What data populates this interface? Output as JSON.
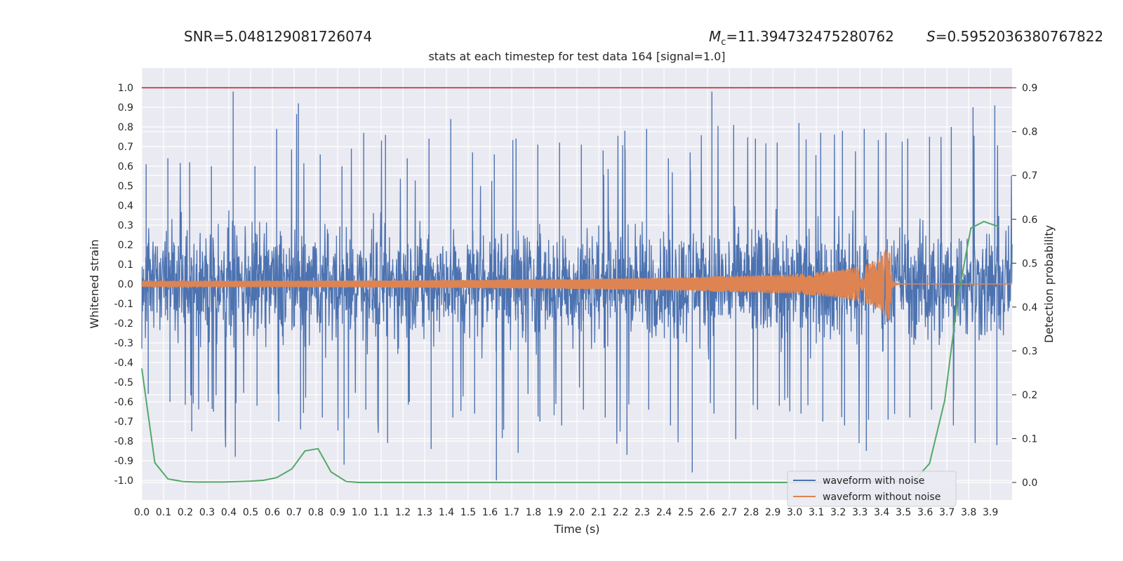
{
  "header": {
    "snr_text": "SNR=5.048129081726074",
    "mc_symbol": "M",
    "mc_subscript": "c",
    "mc_value": "=11.394732475280762",
    "s_symbol": "S",
    "s_value": "=0.5952036380767822"
  },
  "chart_data": {
    "type": "line",
    "title": "stats at each timestep for test data 164 [signal=1.0]",
    "xlabel": "Time (s)",
    "ylabel": "Whitened strain",
    "y2label": "Detection probability",
    "xlim": [
      0.0,
      3.9995
    ],
    "ylim": [
      -1.1,
      1.1
    ],
    "y2lim": [
      -0.04,
      0.945
    ],
    "x_ticks": [
      0.0,
      0.1,
      0.2,
      0.3,
      0.4,
      0.5,
      0.6,
      0.7,
      0.8,
      0.9,
      1.0,
      1.1,
      1.2,
      1.3,
      1.4,
      1.5,
      1.6,
      1.7,
      1.8,
      1.9,
      2.0,
      2.1,
      2.2,
      2.3,
      2.4,
      2.5,
      2.6,
      2.7,
      2.8,
      2.9,
      3.0,
      3.1,
      3.2,
      3.3,
      3.4,
      3.5,
      3.6,
      3.7,
      3.8,
      3.9
    ],
    "y_ticks": [
      1.0,
      0.9,
      0.8,
      0.7,
      0.6,
      0.5,
      0.4,
      0.3,
      0.2,
      0.1,
      0.0,
      -0.1,
      -0.2,
      -0.3,
      -0.4,
      -0.5,
      -0.6,
      -0.7,
      -0.8,
      -0.9,
      -1.0
    ],
    "y2_ticks": [
      0.9,
      0.8,
      0.7,
      0.6,
      0.5,
      0.4,
      0.3,
      0.2,
      0.1,
      0.0
    ],
    "grid": true,
    "legend_position": "bottom-right",
    "series": [
      {
        "name": "waveform with noise",
        "color": "#4c72b0",
        "style": "dense noisy strain, roughly ±0.45 core with spikes to ±1.0",
        "envelope": {
          "x": [
            0.0,
            0.1,
            0.2,
            0.3,
            0.4,
            0.5,
            0.6,
            0.7,
            0.8,
            0.9,
            1.0,
            1.1,
            1.2,
            1.3,
            1.4,
            1.5,
            1.6,
            1.7,
            1.8,
            1.9,
            2.0,
            2.1,
            2.2,
            2.3,
            2.4,
            2.5,
            2.6,
            2.7,
            2.8,
            2.9,
            3.0,
            3.1,
            3.2,
            3.3,
            3.4,
            3.5,
            3.6,
            3.7,
            3.8,
            3.9,
            4.0
          ],
          "max": [
            0.61,
            0.64,
            0.62,
            0.6,
            0.98,
            0.6,
            0.79,
            0.92,
            0.66,
            0.6,
            0.77,
            0.76,
            0.64,
            0.74,
            0.84,
            0.67,
            0.66,
            0.74,
            0.71,
            0.72,
            0.71,
            0.68,
            0.78,
            0.79,
            0.64,
            0.67,
            0.98,
            0.81,
            0.74,
            0.72,
            0.82,
            0.77,
            0.78,
            0.79,
            0.77,
            0.74,
            0.75,
            0.8,
            0.9,
            0.91,
            0.6
          ],
          "min": [
            -0.56,
            -0.6,
            -0.75,
            -0.65,
            -0.88,
            -0.62,
            -0.7,
            -0.74,
            -0.68,
            -0.92,
            -0.64,
            -0.81,
            -0.6,
            -0.84,
            -0.68,
            -0.66,
            -1.0,
            -0.86,
            -0.7,
            -0.72,
            -0.64,
            -0.68,
            -0.87,
            -0.64,
            -0.72,
            -0.96,
            -0.66,
            -0.79,
            -0.64,
            -0.62,
            -0.66,
            -0.7,
            -0.72,
            -0.85,
            -0.69,
            -0.68,
            -0.64,
            -0.72,
            -0.81,
            -0.82,
            -0.62
          ]
        }
      },
      {
        "name": "waveform without noise",
        "color": "#dd8452",
        "style": "chirp oscillation growing in amplitude and frequency, merger near 3.43 s",
        "points": {
          "x": [
            0.0,
            0.5,
            1.0,
            1.5,
            2.0,
            2.5,
            3.0,
            3.2,
            3.3,
            3.38,
            3.42,
            3.435,
            3.45,
            3.5,
            4.0
          ],
          "amplitude": [
            0.015,
            0.015,
            0.017,
            0.02,
            0.025,
            0.035,
            0.05,
            0.07,
            0.09,
            0.12,
            0.17,
            0.2,
            0.03,
            0.005,
            0.003
          ]
        }
      },
      {
        "name": "",
        "axis": "right",
        "color": "#55a868",
        "x": [
          0.0,
          0.06,
          0.12,
          0.19,
          0.25,
          0.31,
          0.37,
          0.44,
          0.5,
          0.56,
          0.62,
          0.69,
          0.75,
          0.81,
          0.87,
          0.94,
          1.0,
          1.5,
          2.0,
          2.5,
          3.0,
          3.5,
          3.56,
          3.62,
          3.69,
          3.75,
          3.81,
          3.87,
          3.94
        ],
        "y": [
          0.26,
          0.045,
          0.008,
          0.002,
          0.001,
          0.001,
          0.001,
          0.002,
          0.003,
          0.005,
          0.011,
          0.031,
          0.072,
          0.077,
          0.024,
          0.002,
          0.0,
          0.0,
          0.0,
          0.0,
          0.0,
          0.002,
          0.01,
          0.043,
          0.187,
          0.42,
          0.58,
          0.595,
          0.583
        ]
      },
      {
        "name": "",
        "axis": "right",
        "color": "#c44e52",
        "style": "horizontal threshold line",
        "x": [
          0.0,
          3.9995
        ],
        "y": [
          0.9,
          0.9
        ]
      }
    ]
  }
}
